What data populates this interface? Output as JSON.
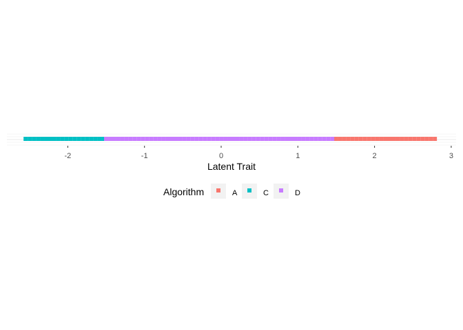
{
  "chart_data": {
    "type": "scatter",
    "xlabel": "Latent Trait",
    "ylabel": "",
    "title": "",
    "xlim": [
      -2.72,
      3.0
    ],
    "x_ticks": [
      -2,
      -1,
      0,
      1,
      2,
      3
    ],
    "x_tick_labels": [
      "-2",
      "-1",
      "0",
      "1",
      "2",
      "3"
    ],
    "grid": true,
    "legend": {
      "title": "Algorithm",
      "position": "bottom"
    },
    "series": [
      {
        "name": "A",
        "color": "#F8766D",
        "x_start": 1.5,
        "x_end": 2.83,
        "step": 0.0536
      },
      {
        "name": "C",
        "color": "#00BFC4",
        "x_start": -2.55,
        "x_end": -1.5,
        "step": 0.0536
      },
      {
        "name": "D",
        "color": "#C77CFF",
        "x_start": -1.5,
        "x_end": 1.5,
        "step": 0.0536
      }
    ]
  }
}
